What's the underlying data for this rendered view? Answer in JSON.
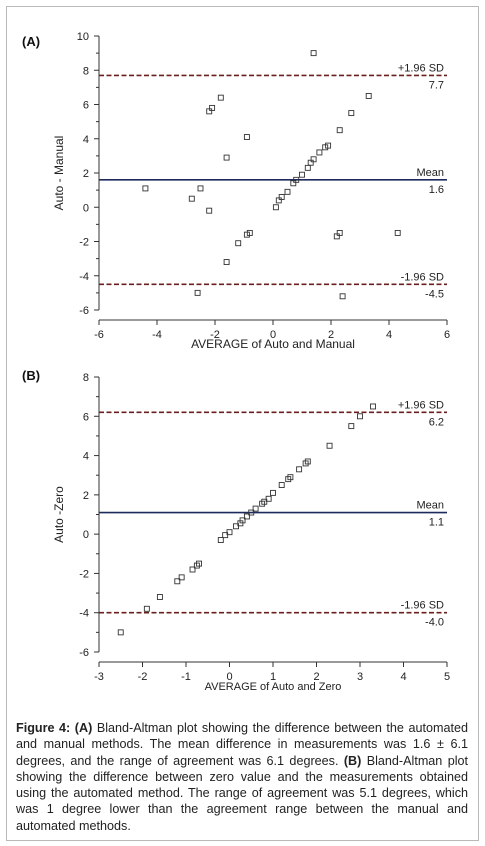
{
  "panels": [
    {
      "label": "(A)",
      "chart_data": {
        "type": "scatter",
        "xlabel": "AVERAGE of Auto and Manual",
        "ylabel": "Auto - Manual",
        "xlim": [
          -6,
          6
        ],
        "ylim": [
          -6,
          10
        ],
        "xticks": [
          -6,
          -4,
          -2,
          0,
          2,
          4,
          6
        ],
        "yticks": [
          -6,
          -4,
          -2,
          0,
          2,
          4,
          6,
          8,
          10
        ],
        "grid": false,
        "reference_lines": [
          {
            "name": "upper",
            "y": 7.7,
            "label_top": "+1.96 SD",
            "label_bottom": "7.7",
            "style": "dashed"
          },
          {
            "name": "mean",
            "y": 1.6,
            "label_top": "Mean",
            "label_bottom": "1.6",
            "style": "solid"
          },
          {
            "name": "lower",
            "y": -4.5,
            "label_top": "-1.96 SD",
            "label_bottom": "-4.5",
            "style": "dashed"
          }
        ],
        "points": [
          {
            "x": 1.4,
            "y": 9.0
          },
          {
            "x": -1.8,
            "y": 6.4
          },
          {
            "x": -2.1,
            "y": 5.8
          },
          {
            "x": -2.2,
            "y": 5.6
          },
          {
            "x": 3.3,
            "y": 6.5
          },
          {
            "x": 2.7,
            "y": 5.5
          },
          {
            "x": 2.3,
            "y": 4.5
          },
          {
            "x": -0.9,
            "y": 4.1
          },
          {
            "x": 1.9,
            "y": 3.6
          },
          {
            "x": 1.8,
            "y": 3.5
          },
          {
            "x": 1.6,
            "y": 3.2
          },
          {
            "x": -1.6,
            "y": 2.9
          },
          {
            "x": 1.4,
            "y": 2.8
          },
          {
            "x": 1.3,
            "y": 2.6
          },
          {
            "x": 1.2,
            "y": 2.3
          },
          {
            "x": 1.0,
            "y": 1.9
          },
          {
            "x": 0.8,
            "y": 1.6
          },
          {
            "x": 0.7,
            "y": 1.4
          },
          {
            "x": -4.4,
            "y": 1.1
          },
          {
            "x": -2.5,
            "y": 1.1
          },
          {
            "x": 0.5,
            "y": 0.9
          },
          {
            "x": 0.3,
            "y": 0.6
          },
          {
            "x": -2.8,
            "y": 0.5
          },
          {
            "x": 0.2,
            "y": 0.4
          },
          {
            "x": 0.1,
            "y": 0.0
          },
          {
            "x": -2.2,
            "y": -0.2
          },
          {
            "x": -0.8,
            "y": -1.5
          },
          {
            "x": -0.9,
            "y": -1.6
          },
          {
            "x": 2.3,
            "y": -1.5
          },
          {
            "x": 2.2,
            "y": -1.7
          },
          {
            "x": 4.3,
            "y": -1.5
          },
          {
            "x": -1.2,
            "y": -2.1
          },
          {
            "x": -1.6,
            "y": -3.2
          },
          {
            "x": -2.6,
            "y": -5.0
          },
          {
            "x": 2.4,
            "y": -5.2
          }
        ]
      }
    },
    {
      "label": "(B)",
      "chart_data": {
        "type": "scatter",
        "xlabel": "AVERAGE of Auto and Zero",
        "ylabel": "Auto -Zero",
        "xlim": [
          -3,
          5
        ],
        "ylim": [
          -6,
          8
        ],
        "xticks": [
          -3,
          -2,
          -1,
          0,
          1,
          2,
          3,
          4,
          5
        ],
        "yticks": [
          -6,
          -4,
          -2,
          0,
          2,
          4,
          6,
          8
        ],
        "grid": false,
        "reference_lines": [
          {
            "name": "upper",
            "y": 6.2,
            "label_top": "+1.96 SD",
            "label_bottom": "6.2",
            "style": "dashed"
          },
          {
            "name": "mean",
            "y": 1.1,
            "label_top": "Mean",
            "label_bottom": "1.1",
            "style": "solid"
          },
          {
            "name": "lower",
            "y": -4.0,
            "label_top": "-1.96 SD",
            "label_bottom": "-4.0",
            "style": "dashed"
          }
        ],
        "points": [
          {
            "x": 3.3,
            "y": 6.5
          },
          {
            "x": 3.0,
            "y": 6.0
          },
          {
            "x": 2.8,
            "y": 5.5
          },
          {
            "x": 2.3,
            "y": 4.5
          },
          {
            "x": 1.8,
            "y": 3.7
          },
          {
            "x": 1.75,
            "y": 3.6
          },
          {
            "x": 1.6,
            "y": 3.3
          },
          {
            "x": 1.4,
            "y": 2.9
          },
          {
            "x": 1.35,
            "y": 2.8
          },
          {
            "x": 1.2,
            "y": 2.5
          },
          {
            "x": 1.0,
            "y": 2.1
          },
          {
            "x": 0.9,
            "y": 1.8
          },
          {
            "x": 0.8,
            "y": 1.65
          },
          {
            "x": 0.75,
            "y": 1.55
          },
          {
            "x": 0.6,
            "y": 1.3
          },
          {
            "x": 0.5,
            "y": 1.1
          },
          {
            "x": 0.4,
            "y": 0.9
          },
          {
            "x": 0.3,
            "y": 0.7
          },
          {
            "x": 0.25,
            "y": 0.55
          },
          {
            "x": 0.15,
            "y": 0.4
          },
          {
            "x": 0.0,
            "y": 0.1
          },
          {
            "x": -0.1,
            "y": -0.05
          },
          {
            "x": -0.2,
            "y": -0.3
          },
          {
            "x": -0.7,
            "y": -1.5
          },
          {
            "x": -0.75,
            "y": -1.6
          },
          {
            "x": -0.85,
            "y": -1.8
          },
          {
            "x": -1.1,
            "y": -2.2
          },
          {
            "x": -1.2,
            "y": -2.4
          },
          {
            "x": -1.6,
            "y": -3.2
          },
          {
            "x": -1.9,
            "y": -3.8
          },
          {
            "x": -2.5,
            "y": -5.0
          }
        ]
      }
    }
  ],
  "caption": {
    "figure_label": "Figure 4:",
    "part_a_label": "(A)",
    "part_a_text": " Bland-Altman plot showing the difference between the automated and manual methods. The mean difference in measurements was 1.6 ± 6.1 degrees, and the range of agreement was 6.1 degrees. ",
    "part_b_label": "(B)",
    "part_b_text": " Bland-Altman plot showing the difference between zero value and the measurements obtained using the automated method. The range of agreement was 5.1 degrees, which was 1 degree lower than the agreement range between the manual and automated methods."
  },
  "colors": {
    "mean_line": "#1f2a5c",
    "sd_line": "#6b1f1f",
    "axis": "#333333",
    "marker": "#333333"
  }
}
